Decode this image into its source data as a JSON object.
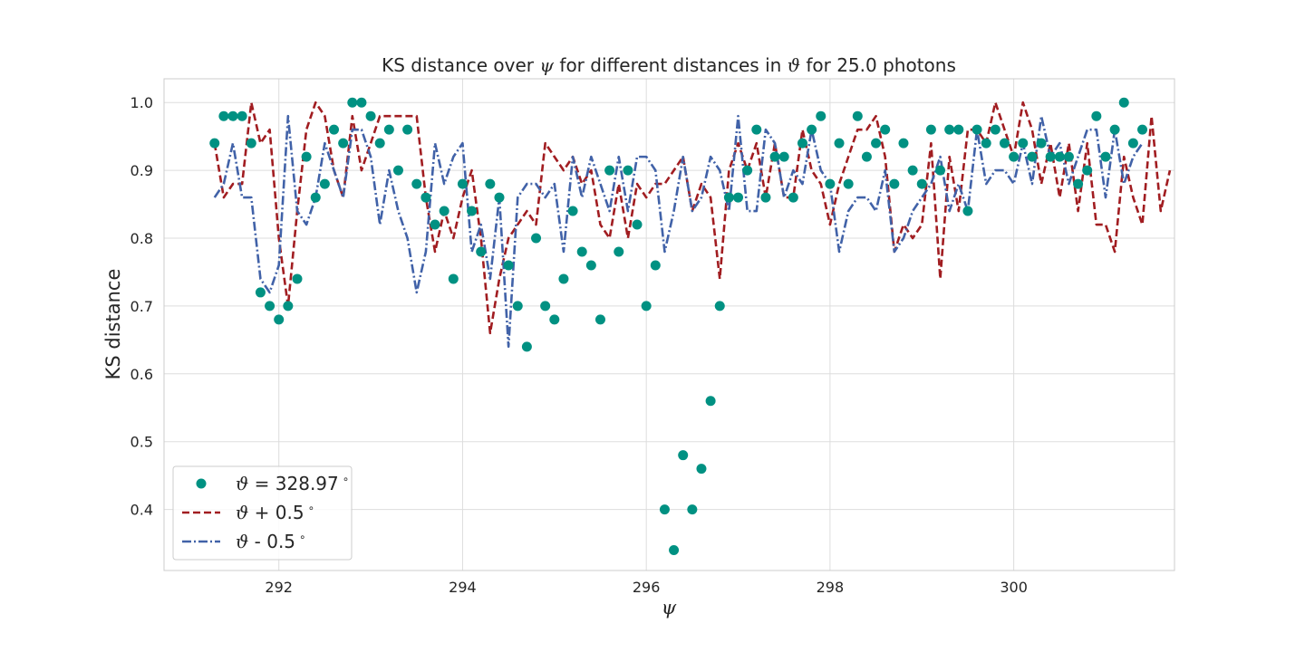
{
  "chart_data": {
    "type": "line",
    "title_pre": "KS distance over ",
    "title_sym1": "ψ",
    "title_mid": " for different distances in ",
    "title_sym2": "ϑ",
    "title_post": " for 25.0 photons",
    "xlabel": "ψ",
    "ylabel": "KS distance",
    "xlim": [
      290.75,
      301.75
    ],
    "ylim": [
      0.31,
      1.035
    ],
    "xticks": [
      292,
      294,
      296,
      298,
      300
    ],
    "xtick_labels": [
      "292",
      "294",
      "296",
      "298",
      "300"
    ],
    "yticks": [
      0.4,
      0.5,
      0.6,
      0.7,
      0.8,
      0.9,
      1.0
    ],
    "ytick_labels": [
      "0.4",
      "0.5",
      "0.6",
      "0.7",
      "0.8",
      "0.9",
      "1.0"
    ],
    "grid": true,
    "legend_position": "lower-left",
    "x_start": 291.3,
    "x_step": 0.1,
    "series": [
      {
        "name": "ϑ = 328.97 ∘",
        "label_sym": "ϑ",
        "label_rest": " = 328.97",
        "kind": "scatter",
        "color": "#009182",
        "values": [
          0.94,
          0.98,
          0.98,
          0.98,
          0.94,
          0.72,
          0.7,
          0.68,
          0.7,
          0.74,
          0.92,
          0.86,
          0.88,
          0.96,
          0.94,
          1.0,
          1.0,
          0.98,
          0.94,
          0.96,
          0.9,
          0.96,
          0.88,
          0.86,
          0.82,
          0.84,
          0.74,
          0.88,
          0.84,
          0.78,
          0.88,
          0.86,
          0.76,
          0.7,
          0.64,
          0.8,
          0.7,
          0.68,
          0.74,
          0.84,
          0.78,
          0.76,
          0.68,
          0.9,
          0.78,
          0.9,
          0.82,
          0.7,
          0.76,
          0.4,
          0.34,
          0.48,
          0.4,
          0.46,
          0.56,
          0.7,
          0.86,
          0.86,
          0.9,
          0.96,
          0.86,
          0.92,
          0.92,
          0.86,
          0.94,
          0.96,
          0.98,
          0.88,
          0.94,
          0.88,
          0.98,
          0.92,
          0.94,
          0.96,
          0.88,
          0.94,
          0.9,
          0.88,
          0.96,
          0.9,
          0.96,
          0.96,
          0.84,
          0.96,
          0.94,
          0.96,
          0.94,
          0.92,
          0.94,
          0.92,
          0.94,
          0.92,
          0.92,
          0.92,
          0.88,
          0.9,
          0.98,
          0.92,
          0.96,
          1.0,
          0.94,
          0.96
        ]
      },
      {
        "name": "ϑ + 0.5 ∘",
        "label_sym": "ϑ",
        "label_rest": " + 0.5",
        "kind": "dashed",
        "color": "#a11d21",
        "values": [
          0.94,
          0.86,
          0.88,
          0.88,
          1.0,
          0.94,
          0.96,
          0.8,
          0.7,
          0.84,
          0.96,
          1.0,
          0.98,
          0.9,
          0.86,
          0.98,
          0.9,
          0.94,
          0.98,
          0.98,
          0.98,
          0.98,
          0.98,
          0.86,
          0.78,
          0.84,
          0.8,
          0.86,
          0.9,
          0.8,
          0.66,
          0.74,
          0.8,
          0.82,
          0.84,
          0.82,
          0.94,
          0.92,
          0.9,
          0.92,
          0.88,
          0.9,
          0.82,
          0.8,
          0.88,
          0.8,
          0.88,
          0.86,
          0.88,
          0.88,
          0.9,
          0.92,
          0.84,
          0.88,
          0.86,
          0.74,
          0.9,
          0.94,
          0.9,
          0.94,
          0.86,
          0.94,
          0.86,
          0.86,
          0.96,
          0.9,
          0.88,
          0.82,
          0.88,
          0.92,
          0.96,
          0.96,
          0.98,
          0.92,
          0.78,
          0.82,
          0.8,
          0.82,
          0.94,
          0.74,
          0.92,
          0.84,
          0.96,
          0.96,
          0.94,
          1.0,
          0.96,
          0.92,
          1.0,
          0.96,
          0.88,
          0.94,
          0.86,
          0.94,
          0.84,
          0.94,
          0.82,
          0.82,
          0.78,
          0.92,
          0.86,
          0.82,
          0.98,
          0.84,
          0.9
        ]
      },
      {
        "name": "ϑ - 0.5 ∘",
        "label_sym": "ϑ",
        "label_rest": " - 0.5",
        "kind": "dashdot",
        "color": "#4162a8",
        "values": [
          0.86,
          0.88,
          0.94,
          0.86,
          0.86,
          0.74,
          0.72,
          0.76,
          0.98,
          0.84,
          0.82,
          0.86,
          0.94,
          0.9,
          0.86,
          0.96,
          0.96,
          0.92,
          0.82,
          0.9,
          0.84,
          0.8,
          0.72,
          0.78,
          0.94,
          0.88,
          0.92,
          0.94,
          0.78,
          0.82,
          0.74,
          0.86,
          0.64,
          0.86,
          0.88,
          0.88,
          0.86,
          0.88,
          0.78,
          0.92,
          0.86,
          0.92,
          0.88,
          0.84,
          0.92,
          0.84,
          0.92,
          0.92,
          0.9,
          0.78,
          0.84,
          0.92,
          0.84,
          0.86,
          0.92,
          0.9,
          0.84,
          0.98,
          0.84,
          0.84,
          0.96,
          0.94,
          0.86,
          0.9,
          0.88,
          0.96,
          0.9,
          0.88,
          0.78,
          0.84,
          0.86,
          0.86,
          0.84,
          0.9,
          0.78,
          0.8,
          0.84,
          0.86,
          0.88,
          0.92,
          0.84,
          0.88,
          0.84,
          0.96,
          0.88,
          0.9,
          0.9,
          0.88,
          0.94,
          0.88,
          0.98,
          0.92,
          0.94,
          0.88,
          0.92,
          0.96,
          0.96,
          0.86,
          0.96,
          0.88,
          0.92,
          0.94
        ]
      }
    ]
  }
}
